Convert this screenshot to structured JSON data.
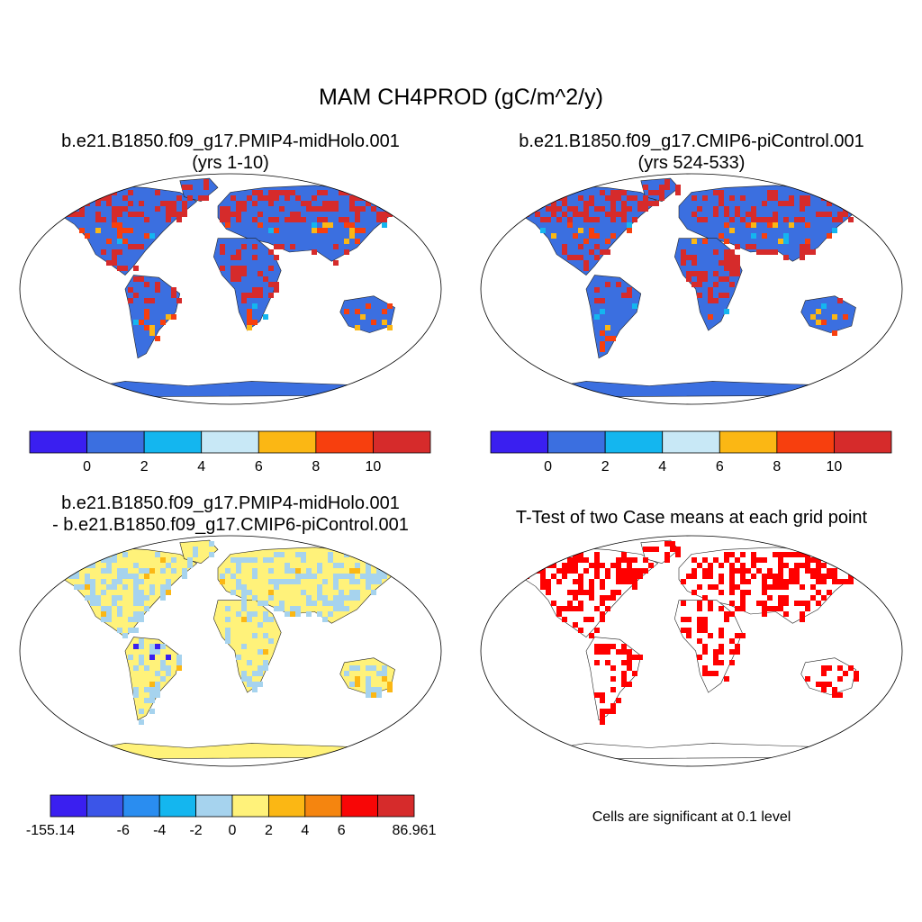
{
  "title": "MAM CH4PROD (gC/m^2/y)",
  "panels": [
    {
      "id": "p1",
      "title": "b.e21.B1850.f09_g17.PMIP4-midHolo.001",
      "subtitle": "(yrs 1-10)"
    },
    {
      "id": "p2",
      "title": "b.e21.B1850.f09_g17.CMIP6-piControl.001",
      "subtitle": "(yrs 524-533)"
    },
    {
      "id": "p3",
      "title": "b.e21.B1850.f09_g17.PMIP4-midHolo.001",
      "subtitle": "- b.e21.B1850.f09_g17.CMIP6-piControl.001"
    },
    {
      "id": "p4",
      "title": "T-Test of two Case means at each grid point",
      "subtitle": ""
    }
  ],
  "colorbar_abs": {
    "colors": [
      "#3a1ff0",
      "#3b6fe0",
      "#14b6ef",
      "#c8e8f6",
      "#fbb714",
      "#f73f0e",
      "#d62b2b"
    ],
    "labels": [
      "0",
      "2",
      "4",
      "6",
      "8",
      "10"
    ]
  },
  "colorbar_diff": {
    "colors": [
      "#3a1ff0",
      "#3b55e8",
      "#2a8df0",
      "#14b6ef",
      "#a6d3ee",
      "#fff27a",
      "#fbb714",
      "#f5850f",
      "#f80606",
      "#d62b2b"
    ],
    "labels": [
      "-155.14",
      "-6",
      "-4",
      "-2",
      "0",
      "2",
      "4",
      "6",
      "86.961"
    ]
  },
  "significance_note": "Cells are significant at 0.1 level",
  "map_colors": {
    "ocean": "#ffffff",
    "land_abs": "#3b6fe0",
    "land_diff": "#fff27a",
    "hot": "#d62b2b",
    "warm": "#f73f0e",
    "mid": "#fbb714",
    "cool": "#14b6ef",
    "diff_neg": "#a6d3ee",
    "diff_strong_neg": "#3a1ff0",
    "sig": "#ff0000"
  }
}
